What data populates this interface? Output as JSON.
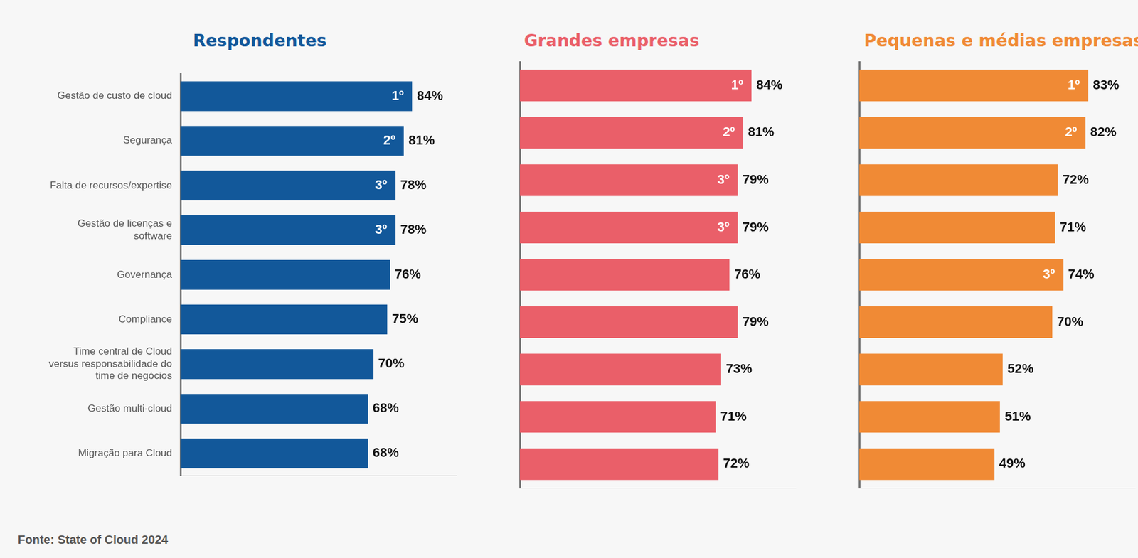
{
  "source": "Fonte:  State of Cloud 2024",
  "chart_data": [
    {
      "type": "bar",
      "orientation": "horizontal",
      "title": "Respondentes",
      "color": "#12589a",
      "categories": [
        "Gestão de custo de cloud",
        "Segurança",
        "Falta de recursos/expertise",
        "Gestão de licenças e software",
        "Governança",
        "Compliance",
        "Time central de Cloud versus responsabilidade do time de negócios",
        "Gestão multi-cloud",
        "Migração para Cloud"
      ],
      "values": [
        84,
        81,
        78,
        78,
        76,
        75,
        70,
        68,
        68
      ],
      "value_labels": [
        "84%",
        "81%",
        "78%",
        "78%",
        "76%",
        "75%",
        "70%",
        "68%",
        "68%"
      ],
      "rank_labels": [
        "1º",
        "2º",
        "3º",
        "3º",
        null,
        null,
        null,
        null,
        null
      ],
      "xlim": [
        0,
        100
      ],
      "xticks": [
        0,
        100
      ],
      "grid": false,
      "data_labels": true,
      "tick_labels": "y"
    },
    {
      "type": "bar",
      "orientation": "horizontal",
      "title": "Grandes empresas",
      "color": "#ea5f69",
      "categories": [
        null,
        null,
        null,
        null,
        null,
        null,
        null,
        null,
        null
      ],
      "values": [
        84,
        81,
        79,
        79,
        76,
        79,
        73,
        71,
        72
      ],
      "value_labels": [
        "84%",
        "81%",
        "79%",
        "79%",
        "76%",
        "79%",
        "73%",
        "71%",
        "72%"
      ],
      "rank_labels": [
        "1º",
        "2º",
        "3º",
        "3º",
        null,
        null,
        null,
        null,
        null
      ],
      "xlim": [
        0,
        100
      ],
      "xticks": [
        0,
        100
      ],
      "grid": false,
      "data_labels": true,
      "tick_labels": false
    },
    {
      "type": "bar",
      "orientation": "horizontal",
      "title": "Pequenas e médias empresas",
      "color": "#f08a35",
      "categories": [
        null,
        null,
        null,
        null,
        null,
        null,
        null,
        null,
        null
      ],
      "values": [
        83,
        82,
        72,
        71,
        74,
        70,
        52,
        51,
        49
      ],
      "value_labels": [
        "83%",
        "82%",
        "72%",
        "71%",
        "74%",
        "70%",
        "52%",
        "51%",
        "49%"
      ],
      "rank_labels": [
        "1º",
        "2º",
        null,
        null,
        "3º",
        null,
        null,
        null,
        null
      ],
      "xlim": [
        0,
        100
      ],
      "xticks": [
        0,
        100
      ],
      "grid": false,
      "data_labels": true,
      "tick_labels": false
    }
  ]
}
